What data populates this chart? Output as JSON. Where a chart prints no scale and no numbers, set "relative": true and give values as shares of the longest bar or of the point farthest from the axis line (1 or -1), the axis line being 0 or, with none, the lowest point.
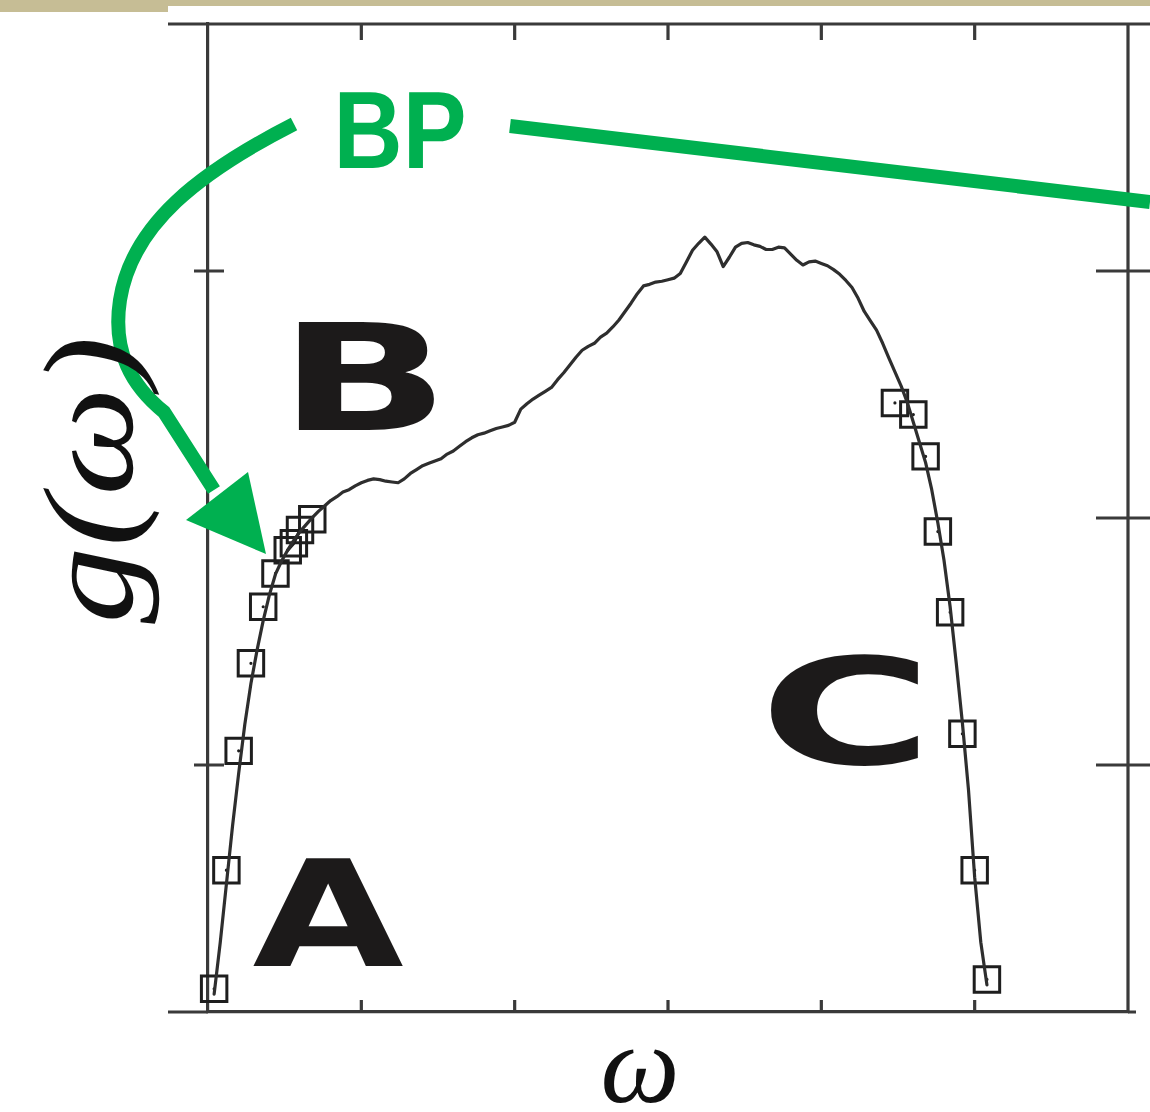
{
  "chart_data": {
    "type": "line",
    "xlabel": "ω",
    "ylabel": "g(ω)",
    "annotations": [
      "A",
      "B",
      "C",
      "BP"
    ],
    "relative": true,
    "tick_labels": false,
    "categories": [
      null,
      null,
      null,
      null,
      null,
      null,
      null,
      null,
      null,
      null,
      null,
      null,
      null,
      null,
      null,
      null,
      null,
      null,
      null,
      null,
      null,
      null,
      null,
      null,
      null,
      null,
      null,
      null,
      null,
      null,
      null,
      null,
      null,
      null,
      null,
      null,
      null,
      null,
      null,
      null,
      null,
      null,
      null,
      null,
      null,
      null,
      null,
      null,
      null,
      null,
      null,
      null,
      null,
      null,
      null,
      null,
      null,
      null,
      null,
      null,
      null,
      null,
      null,
      null,
      null,
      null,
      null,
      null,
      null,
      null,
      null,
      null,
      null,
      null,
      null,
      null,
      null,
      null,
      null,
      null,
      null,
      null,
      null,
      null,
      null,
      null,
      null,
      null,
      null,
      null,
      null,
      null,
      null,
      null,
      null,
      null,
      null,
      null,
      null,
      null,
      null,
      null,
      null,
      null,
      null,
      null,
      null,
      null,
      null,
      null,
      null,
      null,
      null,
      null,
      null,
      null,
      null,
      null,
      null,
      null,
      null,
      null,
      null,
      null,
      null,
      null,
      null,
      null,
      null,
      null,
      null,
      null,
      null,
      null,
      null,
      null,
      null,
      null,
      null,
      null,
      null,
      null,
      null,
      null,
      null,
      null,
      null,
      null,
      null,
      null,
      null
    ],
    "series": [
      {
        "type": "line",
        "color": "#2e2e2e",
        "marker": "none",
        "values": [
          null,
          0.023,
          0.09,
          0.165,
          0.24,
          0.308,
          0.371,
          0.424,
          0.467,
          0.505,
          0.538,
          0.565,
          0.582,
          0.596,
          0.609,
          0.62,
          0.629,
          0.638,
          0.646,
          0.653,
          0.66,
          0.665,
          0.671,
          0.674,
          0.679,
          0.683,
          0.686,
          0.688,
          0.687,
          0.685,
          0.684,
          0.683,
          0.688,
          0.695,
          0.7,
          0.705,
          0.708,
          0.711,
          0.714,
          0.72,
          0.724,
          0.73,
          0.736,
          0.741,
          0.745,
          0.747,
          0.75,
          0.753,
          0.755,
          0.757,
          0.761,
          0.778,
          0.785,
          0.791,
          0.796,
          0.801,
          0.806,
          0.816,
          0.825,
          0.835,
          0.845,
          0.854,
          0.859,
          0.863,
          0.871,
          0.876,
          0.884,
          0.893,
          0.904,
          0.915,
          0.927,
          0.937,
          0.939,
          0.942,
          0.943,
          0.945,
          0.947,
          0.953,
          0.968,
          0.983,
          0.992,
          1,
          0.991,
          0.981,
          0.962,
          0.974,
          0.987,
          0.992,
          0.993,
          0.99,
          0.988,
          0.984,
          0.984,
          0.987,
          0.986,
          0.978,
          0.97,
          0.964,
          0.968,
          0.969,
          0.966,
          0.963,
          0.958,
          0.952,
          0.944,
          0.935,
          0.921,
          0.904,
          0.892,
          0.88,
          0.863,
          0.844,
          0.826,
          0.808,
          0.787,
          0.761,
          0.735,
          0.709,
          0.674,
          0.631,
          0.583,
          0.523,
          0.45,
          0.373,
          0.286,
          0.174,
          0.09,
          0.035,
          null,
          null,
          null,
          null,
          null,
          null,
          null,
          null,
          null,
          null,
          null,
          null,
          null,
          null,
          null,
          null,
          null,
          null,
          null,
          null,
          null,
          null,
          null
        ]
      },
      {
        "type": "line",
        "color": "#1e1e1e",
        "marker": "square",
        "values": [
          null,
          0.03,
          null,
          0.183,
          null,
          0.337,
          null,
          0.45,
          null,
          0.523,
          null,
          0.566,
          null,
          0.596,
          0.605,
          0.622,
          null,
          0.636,
          null,
          null,
          null,
          null,
          null,
          null,
          null,
          null,
          null,
          null,
          null,
          null,
          null,
          null,
          null,
          null,
          null,
          null,
          null,
          null,
          null,
          null,
          null,
          null,
          null,
          null,
          null,
          null,
          null,
          null,
          null,
          null,
          null,
          null,
          null,
          null,
          null,
          null,
          null,
          null,
          null,
          null,
          null,
          null,
          null,
          null,
          null,
          null,
          null,
          null,
          null,
          null,
          null,
          null,
          null,
          null,
          null,
          null,
          null,
          null,
          null,
          null,
          null,
          null,
          null,
          null,
          null,
          null,
          null,
          null,
          null,
          null,
          null,
          null,
          null,
          null,
          null,
          null,
          null,
          null,
          null,
          null,
          null,
          null,
          null,
          null,
          null,
          null,
          null,
          null,
          null,
          null,
          null,
          null,
          0.786,
          null,
          null,
          0.771,
          null,
          0.717,
          null,
          0.62,
          null,
          0.516,
          null,
          0.359,
          null,
          0.183,
          null,
          0.042,
          null,
          null,
          null,
          null,
          null,
          null,
          null,
          null,
          null,
          null,
          null,
          null,
          null,
          null,
          null,
          null,
          null,
          null,
          null,
          null,
          null,
          null,
          null
        ]
      }
    ]
  }
}
